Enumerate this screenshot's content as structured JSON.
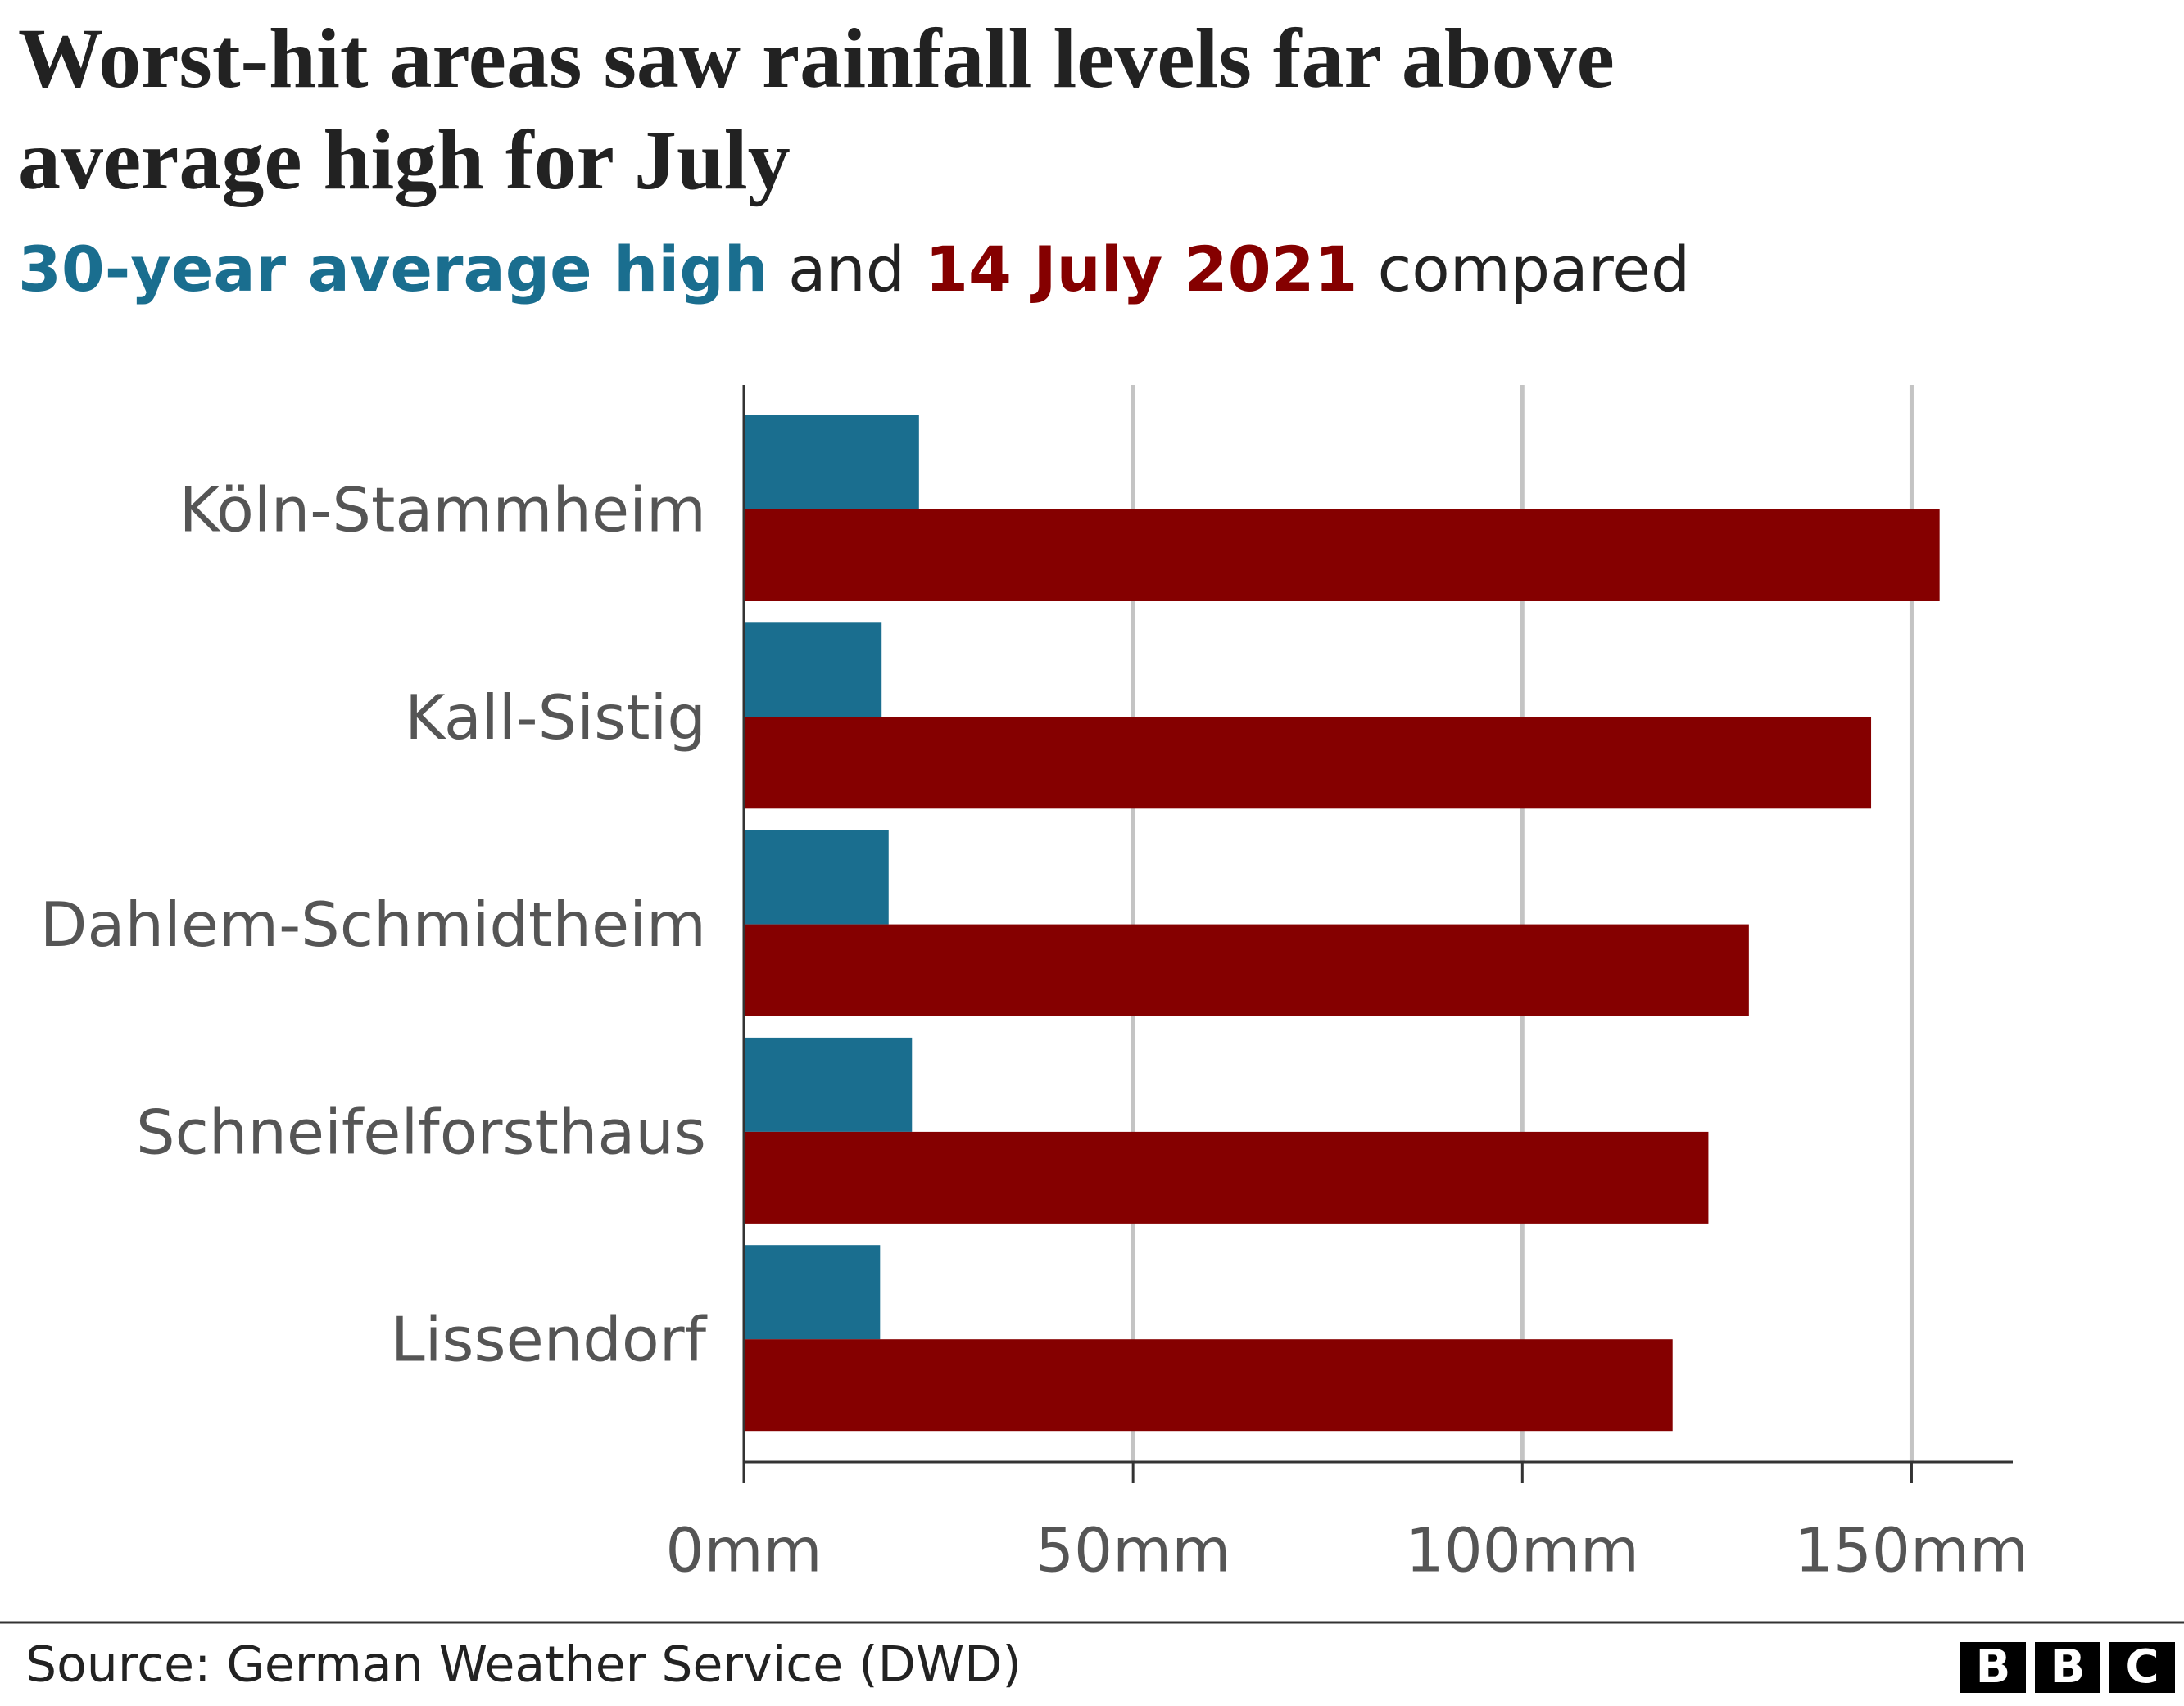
{
  "chart_data": {
    "type": "bar",
    "title": [
      "Worst-hit areas saw rainfall levels far above",
      "average high for July"
    ],
    "subtitle_connectors": [
      "and",
      "compared"
    ],
    "categories": [
      "Köln-Stammheim",
      "Kall-Sistig",
      "Dahlem-Schmidtheim",
      "Schneifelforsthaus",
      "Lissendorf"
    ],
    "series": [
      {
        "name": "30-year average high",
        "color": "#1a6e8f",
        "values": [
          22.5,
          17.7,
          18.6,
          21.6,
          17.5
        ]
      },
      {
        "name": "14 July 2021",
        "color": "#850000",
        "values": [
          153.6,
          144.8,
          129.1,
          123.9,
          119.3
        ]
      }
    ],
    "xlim": [
      0,
      163
    ],
    "xticks": [
      {
        "value": 0,
        "label": "0mm"
      },
      {
        "value": 50,
        "label": "50mm"
      },
      {
        "value": 100,
        "label": "100mm"
      },
      {
        "value": 150,
        "label": "150mm"
      }
    ],
    "grid": true,
    "source": "Source: German Weather Service (DWD)",
    "logo": [
      "B",
      "B",
      "C"
    ]
  }
}
